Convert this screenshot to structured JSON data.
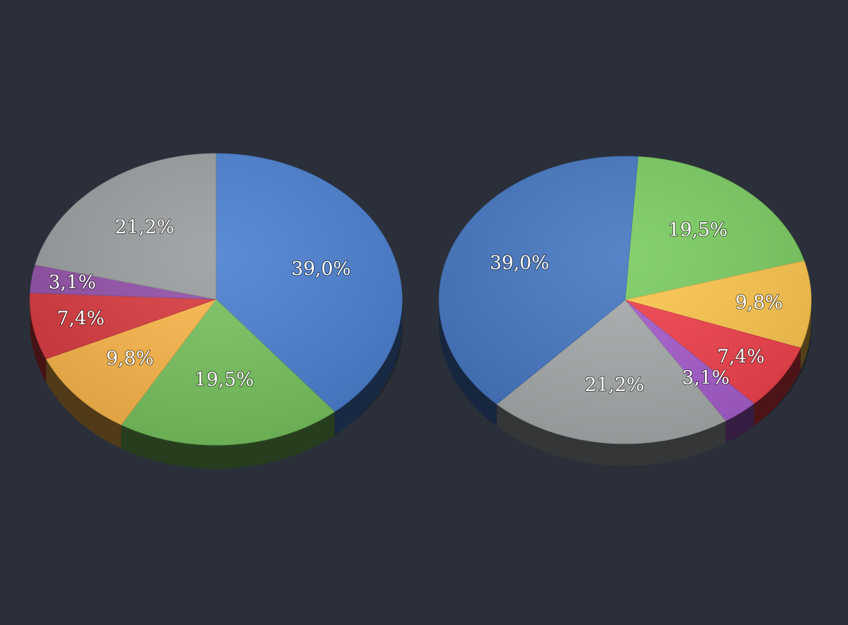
{
  "chart_data": [
    {
      "type": "pie",
      "slices": [
        {
          "label": "39,0%",
          "value": 39.0,
          "color": "#4a7fd0"
        },
        {
          "label": "19,5%",
          "value": 19.5,
          "color": "#77c25e"
        },
        {
          "label": "9,8%",
          "value": 9.8,
          "color": "#fbb64a"
        },
        {
          "label": "7,4%",
          "value": 7.4,
          "color": "#d83a3f"
        },
        {
          "label": "3,1%",
          "value": 3.1,
          "color": "#9250a8"
        },
        {
          "label": "21,2%",
          "value": 21.2,
          "color": "#9a9d9f"
        }
      ]
    },
    {
      "type": "pie",
      "slices": [
        {
          "label": "19,5%",
          "value": 19.5,
          "color": "#7acb60"
        },
        {
          "label": "9,8%",
          "value": 9.8,
          "color": "#fcc54d"
        },
        {
          "label": "7,4%",
          "value": 7.4,
          "color": "#f0404a"
        },
        {
          "label": "3,1%",
          "value": 3.1,
          "color": "#a65ccc"
        },
        {
          "label": "21,2%",
          "value": 21.2,
          "color": "#a6aaab"
        },
        {
          "label": "39,0%",
          "value": 39.0,
          "color": "#4577c2"
        }
      ]
    }
  ]
}
